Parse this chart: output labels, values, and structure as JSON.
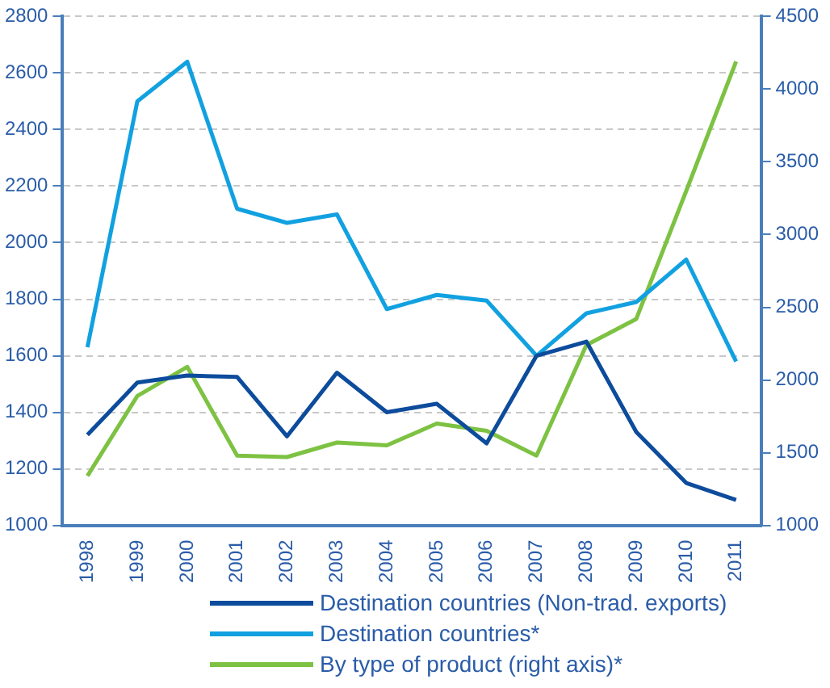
{
  "chart_data": {
    "type": "line",
    "categories": [
      "1998",
      "1999",
      "2000",
      "2001",
      "2002",
      "2003",
      "2004",
      "2005",
      "2006",
      "2007",
      "2008",
      "2009",
      "2010",
      "2011"
    ],
    "series": [
      {
        "name": "Destination countries (Non-trad. exports)",
        "color": "#0d4c9c",
        "values": [
          1320,
          1505,
          1530,
          1525,
          1315,
          1540,
          1400,
          1430,
          1290,
          1600,
          1650,
          1330,
          1150,
          1090
        ]
      },
      {
        "name": "Destination countries*",
        "color": "#12a1e0",
        "values": [
          1630,
          2500,
          2640,
          2120,
          2070,
          2100,
          1765,
          1815,
          1795,
          1600,
          1750,
          1790,
          1940,
          1580
        ]
      },
      {
        "name": "By type of product (right axis)*",
        "color": "#7dc242",
        "axis": "y2",
        "values": [
          1340,
          1890,
          2090,
          1480,
          1470,
          1570,
          1550,
          1700,
          1650,
          1480,
          2240,
          2420,
          3300,
          4190
        ]
      }
    ],
    "ylim": [
      1000,
      2800
    ],
    "yticks": [
      1000,
      1200,
      1400,
      1600,
      1800,
      2000,
      2200,
      2400,
      2600,
      2800
    ],
    "y2lim": [
      1000,
      4500
    ],
    "y2ticks": [
      1000,
      1500,
      2000,
      2500,
      3000,
      3500,
      4000,
      4500
    ],
    "grid": "y",
    "legend": "bottom",
    "marker": "none",
    "line_style": "solid"
  }
}
